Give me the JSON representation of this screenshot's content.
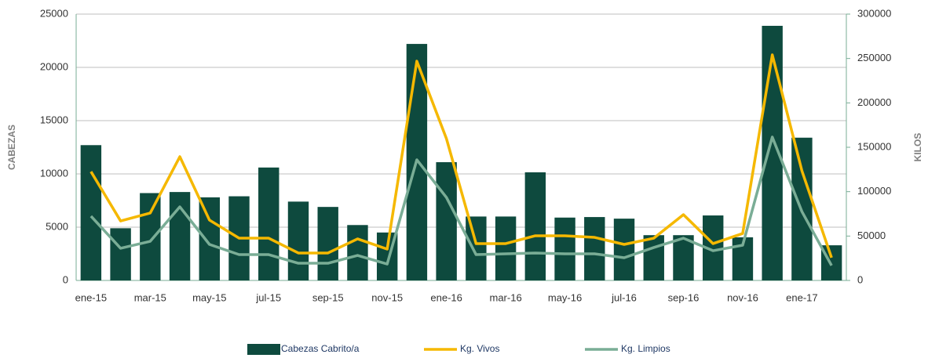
{
  "chart_data": {
    "type": "bar-line",
    "categories": [
      "ene-15",
      null,
      "mar-15",
      null,
      "may-15",
      null,
      "jul-15",
      null,
      "sep-15",
      null,
      "nov-15",
      null,
      "ene-16",
      null,
      "mar-16",
      null,
      "may-16",
      null,
      "jul-16",
      null,
      "sep-16",
      null,
      "nov-16",
      null,
      "ene-17",
      null
    ],
    "series": [
      {
        "name": "Cabezas Cabrito/a",
        "color": "#0e4a3e",
        "kind": "bar",
        "axis": "y",
        "values": [
          12700,
          4900,
          8200,
          8300,
          7800,
          7900,
          10600,
          7400,
          6900,
          5200,
          4500,
          22200,
          11100,
          6000,
          6000,
          10150,
          5900,
          5950,
          5800,
          4250,
          4250,
          6100,
          4050,
          23900,
          13400,
          3300
        ]
      },
      {
        "name": "Kg. Vivos",
        "color": "#f5b800",
        "kind": "line",
        "axis": "y2",
        "values": [
          122600,
          67000,
          75900,
          139400,
          68000,
          47600,
          47600,
          30900,
          30900,
          46800,
          35300,
          247000,
          159700,
          41500,
          41500,
          50300,
          50300,
          48500,
          40600,
          47600,
          74100,
          41500,
          52900,
          254100,
          123500,
          25600
        ]
      },
      {
        "name": "Kg. Limpios",
        "color": "#7aad96",
        "kind": "line",
        "axis": "y2",
        "values": [
          72400,
          36200,
          44100,
          82900,
          40600,
          29100,
          29100,
          19400,
          19400,
          28200,
          18500,
          135900,
          93500,
          29100,
          30000,
          30900,
          30000,
          30000,
          25600,
          37100,
          47600,
          33500,
          39700,
          161500,
          77600,
          16800
        ]
      }
    ],
    "ylabel": "CABEZAS",
    "y2label": "KILOS",
    "ylim": [
      0,
      25000
    ],
    "yticks": [
      0,
      5000,
      10000,
      15000,
      20000,
      25000
    ],
    "y2lim": [
      0,
      300000
    ],
    "y2ticks": [
      0,
      50000,
      100000,
      150000,
      200000,
      250000,
      300000
    ],
    "grid": true,
    "legend": "bottom"
  }
}
